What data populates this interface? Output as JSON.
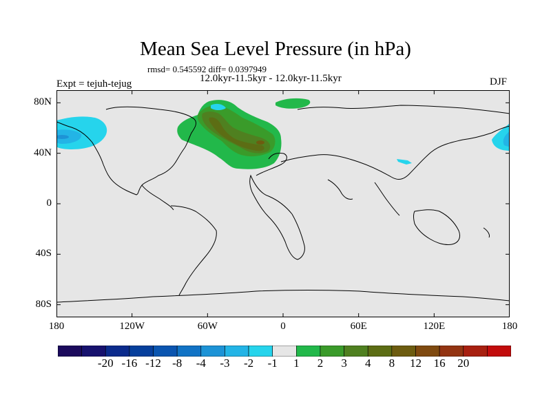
{
  "title": "Mean Sea Level Pressure (in hPa)",
  "stats": "rmsd= 0.545592 diff= 0.0397949",
  "period": "12.0kyr-11.5kyr - 12.0kyr-11.5kyr",
  "experiment": "Expt = tejuh-tejug",
  "season": "DJF",
  "lat_ticks": [
    {
      "value": 80,
      "label": "80N"
    },
    {
      "value": 40,
      "label": "40N"
    },
    {
      "value": 0,
      "label": "0"
    },
    {
      "value": -40,
      "label": "40S"
    },
    {
      "value": -80,
      "label": "80S"
    }
  ],
  "lon_ticks": [
    {
      "value": -180,
      "label": "180"
    },
    {
      "value": -120,
      "label": "120W"
    },
    {
      "value": -60,
      "label": "60W"
    },
    {
      "value": 0,
      "label": "0"
    },
    {
      "value": 60,
      "label": "60E"
    },
    {
      "value": 120,
      "label": "120E"
    },
    {
      "value": 180,
      "label": "180"
    }
  ],
  "colorbar": {
    "colors": [
      "#1b0a5c",
      "#17126e",
      "#0b2b8c",
      "#063f9c",
      "#0a55b0",
      "#1173c5",
      "#1d93d6",
      "#23b4e6",
      "#26d4ec",
      "#e6e6e6",
      "#22b84a",
      "#3a9b2a",
      "#4f8020",
      "#5c6d14",
      "#6d5c10",
      "#7f4a10",
      "#933412",
      "#a82010",
      "#c20c0c"
    ],
    "labels": [
      "-20",
      "-16",
      "-12",
      "-8",
      "-4",
      "-3",
      "-2",
      "-1",
      "1",
      "2",
      "3",
      "4",
      "8",
      "12",
      "16",
      "20"
    ]
  },
  "colors": {
    "ocean_land": "#e6e6e6",
    "green_light": "#22b84a",
    "green_mid": "#3a9b2a",
    "olive": "#4f8020",
    "brown": "#5c6d14",
    "brown_dark": "#6d5c10",
    "cyan": "#26d4ec",
    "cyan_mid": "#23b4e6",
    "blue_core": "#1d93d6"
  }
}
